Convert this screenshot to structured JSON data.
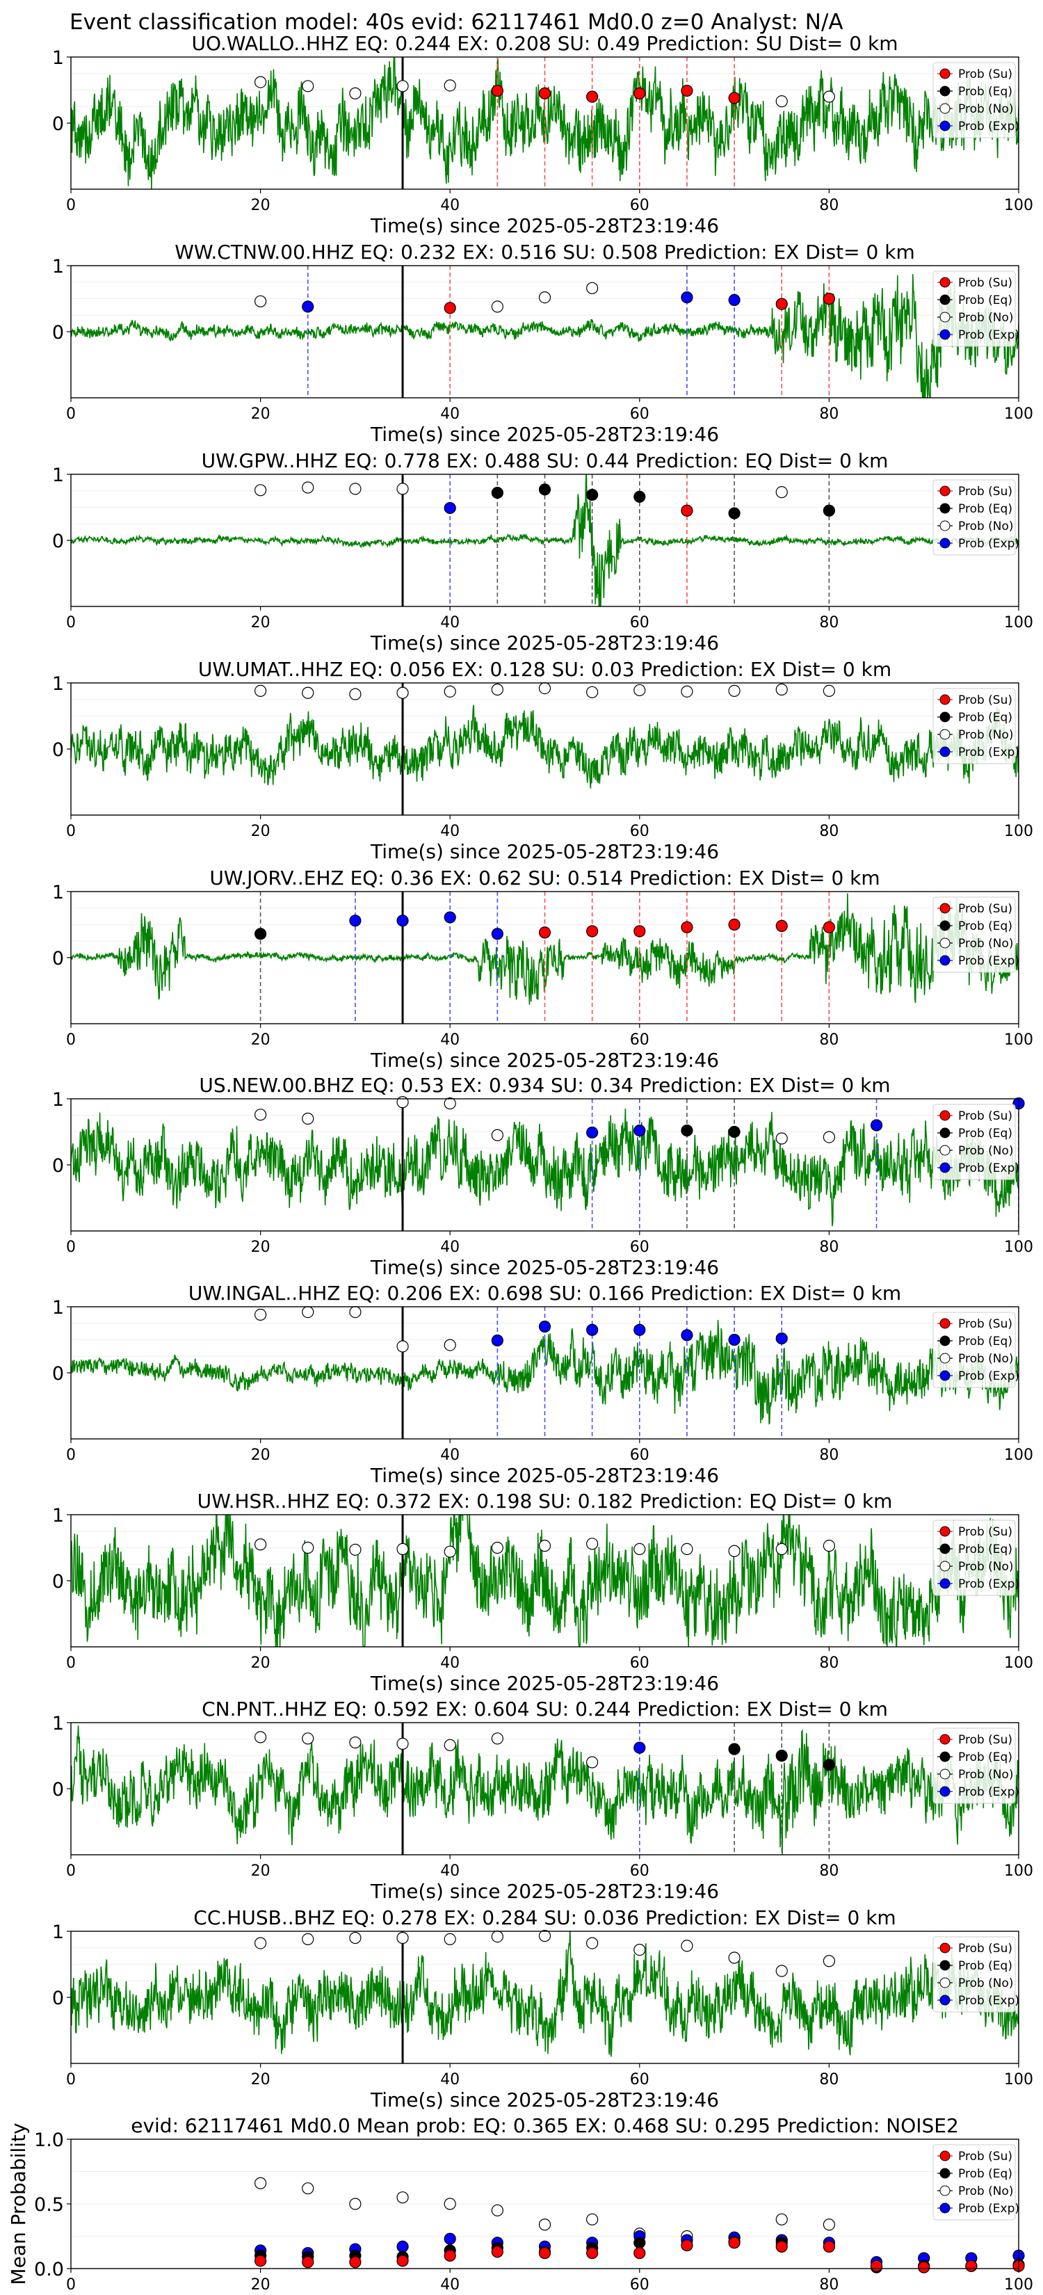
{
  "suptitle": "Event classification model: 40s evid: 62117461 Md0.0 z=0 Analyst: N/A",
  "xlabel": "Time(s) since 2025-05-28T23:19:46",
  "legend": [
    "Prob (Su)",
    "Prob (Eq)",
    "Prob (No)",
    "Prob (Exp)"
  ],
  "colors": {
    "su": "#ff0000",
    "eq": "#000000",
    "no": "#ffffff",
    "exp": "#0000ff",
    "trace": "#008000"
  },
  "chart_data": [
    {
      "type": "line",
      "station": "UO.WALLO..HHZ",
      "title": "UO.WALLO..HHZ   EQ: 0.244  EX: 0.208  SU: 0.49   Prediction: SU    Dist= 0 km",
      "xlim": [
        0,
        100
      ],
      "ylim": [
        -1,
        1
      ],
      "xticks": [
        0,
        20,
        40,
        60,
        80,
        100
      ],
      "yticks": [
        0,
        1
      ],
      "pick_time": 35,
      "trace": {
        "amp": 0.55,
        "bursts": []
      },
      "points": [
        {
          "t": 20,
          "p": 0.62,
          "c": "no"
        },
        {
          "t": 25,
          "p": 0.56,
          "c": "no"
        },
        {
          "t": 30,
          "p": 0.45,
          "c": "no"
        },
        {
          "t": 35,
          "p": 0.56,
          "c": "no"
        },
        {
          "t": 40,
          "p": 0.57,
          "c": "no"
        },
        {
          "t": 45,
          "p": 0.49,
          "c": "su"
        },
        {
          "t": 50,
          "p": 0.45,
          "c": "su"
        },
        {
          "t": 55,
          "p": 0.4,
          "c": "su"
        },
        {
          "t": 60,
          "p": 0.45,
          "c": "su"
        },
        {
          "t": 65,
          "p": 0.49,
          "c": "su"
        },
        {
          "t": 70,
          "p": 0.38,
          "c": "su"
        },
        {
          "t": 75,
          "p": 0.33,
          "c": "no"
        },
        {
          "t": 80,
          "p": 0.4,
          "c": "no"
        }
      ]
    },
    {
      "type": "line",
      "station": "WW.CTNW.00.HHZ",
      "title": "WW.CTNW.00.HHZ   EQ: 0.232  EX: 0.516  SU: 0.508   Prediction: EX    Dist= 0 km",
      "xlim": [
        0,
        100
      ],
      "ylim": [
        -1,
        1
      ],
      "xticks": [
        0,
        20,
        40,
        60,
        80,
        100
      ],
      "yticks": [
        0,
        1
      ],
      "pick_time": 35,
      "trace": {
        "amp": 0.1,
        "bursts": [
          [
            74,
            100,
            0.8
          ]
        ]
      },
      "points": [
        {
          "t": 20,
          "p": 0.46,
          "c": "no"
        },
        {
          "t": 25,
          "p": 0.38,
          "c": "exp"
        },
        {
          "t": 40,
          "p": 0.36,
          "c": "su"
        },
        {
          "t": 45,
          "p": 0.38,
          "c": "no"
        },
        {
          "t": 50,
          "p": 0.52,
          "c": "no"
        },
        {
          "t": 55,
          "p": 0.66,
          "c": "no"
        },
        {
          "t": 65,
          "p": 0.52,
          "c": "exp"
        },
        {
          "t": 70,
          "p": 0.48,
          "c": "exp"
        },
        {
          "t": 75,
          "p": 0.42,
          "c": "su"
        },
        {
          "t": 80,
          "p": 0.5,
          "c": "su"
        }
      ]
    },
    {
      "type": "line",
      "station": "UW.GPW..HHZ",
      "title": "UW.GPW..HHZ   EQ: 0.778  EX: 0.488  SU: 0.44   Prediction: EQ    Dist= 0 km",
      "xlim": [
        0,
        100
      ],
      "ylim": [
        -1,
        1
      ],
      "xticks": [
        0,
        20,
        40,
        60,
        80,
        100
      ],
      "yticks": [
        0,
        1
      ],
      "pick_time": 35,
      "trace": {
        "amp": 0.05,
        "bursts": [
          [
            53,
            58,
            0.9
          ]
        ]
      },
      "points": [
        {
          "t": 20,
          "p": 0.76,
          "c": "no"
        },
        {
          "t": 25,
          "p": 0.8,
          "c": "no"
        },
        {
          "t": 30,
          "p": 0.78,
          "c": "no"
        },
        {
          "t": 35,
          "p": 0.78,
          "c": "no"
        },
        {
          "t": 40,
          "p": 0.49,
          "c": "exp"
        },
        {
          "t": 45,
          "p": 0.72,
          "c": "eq"
        },
        {
          "t": 50,
          "p": 0.77,
          "c": "eq"
        },
        {
          "t": 55,
          "p": 0.69,
          "c": "eq"
        },
        {
          "t": 60,
          "p": 0.66,
          "c": "eq"
        },
        {
          "t": 65,
          "p": 0.45,
          "c": "su"
        },
        {
          "t": 70,
          "p": 0.41,
          "c": "eq"
        },
        {
          "t": 75,
          "p": 0.73,
          "c": "no"
        },
        {
          "t": 80,
          "p": 0.45,
          "c": "eq"
        }
      ]
    },
    {
      "type": "line",
      "station": "UW.UMAT..HHZ",
      "title": "UW.UMAT..HHZ   EQ: 0.056  EX: 0.128  SU: 0.03   Prediction: EX    Dist= 0 km",
      "xlim": [
        0,
        100
      ],
      "ylim": [
        -1,
        1
      ],
      "xticks": [
        0,
        20,
        40,
        60,
        80,
        100
      ],
      "yticks": [
        0,
        1
      ],
      "pick_time": 35,
      "trace": {
        "amp": 0.35,
        "bursts": []
      },
      "points": [
        {
          "t": 20,
          "p": 0.88,
          "c": "no"
        },
        {
          "t": 25,
          "p": 0.85,
          "c": "no"
        },
        {
          "t": 30,
          "p": 0.83,
          "c": "no"
        },
        {
          "t": 35,
          "p": 0.85,
          "c": "no"
        },
        {
          "t": 40,
          "p": 0.87,
          "c": "no"
        },
        {
          "t": 45,
          "p": 0.9,
          "c": "no"
        },
        {
          "t": 50,
          "p": 0.92,
          "c": "no"
        },
        {
          "t": 55,
          "p": 0.86,
          "c": "no"
        },
        {
          "t": 60,
          "p": 0.89,
          "c": "no"
        },
        {
          "t": 65,
          "p": 0.87,
          "c": "no"
        },
        {
          "t": 70,
          "p": 0.88,
          "c": "no"
        },
        {
          "t": 75,
          "p": 0.9,
          "c": "no"
        },
        {
          "t": 80,
          "p": 0.88,
          "c": "no"
        }
      ]
    },
    {
      "type": "line",
      "station": "UW.JORV..EHZ",
      "title": "UW.JORV..EHZ   EQ: 0.36  EX: 0.62  SU: 0.514   Prediction: EX    Dist= 0 km",
      "xlim": [
        0,
        100
      ],
      "ylim": [
        -1,
        1
      ],
      "xticks": [
        0,
        20,
        40,
        60,
        80,
        100
      ],
      "yticks": [
        0,
        1
      ],
      "pick_time": 35,
      "trace": {
        "amp": 0.05,
        "bursts": [
          [
            5,
            12,
            0.6
          ],
          [
            43,
            52,
            0.6
          ],
          [
            56,
            70,
            0.4
          ],
          [
            78,
            100,
            0.7
          ]
        ]
      },
      "points": [
        {
          "t": 20,
          "p": 0.36,
          "c": "eq"
        },
        {
          "t": 30,
          "p": 0.56,
          "c": "exp"
        },
        {
          "t": 35,
          "p": 0.56,
          "c": "exp"
        },
        {
          "t": 40,
          "p": 0.61,
          "c": "exp"
        },
        {
          "t": 45,
          "p": 0.36,
          "c": "exp"
        },
        {
          "t": 50,
          "p": 0.38,
          "c": "su"
        },
        {
          "t": 55,
          "p": 0.4,
          "c": "su"
        },
        {
          "t": 60,
          "p": 0.4,
          "c": "su"
        },
        {
          "t": 65,
          "p": 0.46,
          "c": "su"
        },
        {
          "t": 70,
          "p": 0.5,
          "c": "su"
        },
        {
          "t": 75,
          "p": 0.48,
          "c": "su"
        },
        {
          "t": 80,
          "p": 0.46,
          "c": "su"
        }
      ]
    },
    {
      "type": "line",
      "station": "US.NEW.00.BHZ",
      "title": "US.NEW.00.BHZ   EQ: 0.53  EX: 0.934  SU: 0.34   Prediction: EX    Dist= 0 km",
      "xlim": [
        0,
        100
      ],
      "ylim": [
        -1,
        1
      ],
      "xticks": [
        0,
        20,
        40,
        60,
        80,
        100
      ],
      "yticks": [
        0,
        1
      ],
      "pick_time": 35,
      "trace": {
        "amp": 0.5,
        "bursts": []
      },
      "points": [
        {
          "t": 20,
          "p": 0.76,
          "c": "no"
        },
        {
          "t": 25,
          "p": 0.7,
          "c": "no"
        },
        {
          "t": 35,
          "p": 0.95,
          "c": "no"
        },
        {
          "t": 40,
          "p": 0.93,
          "c": "no"
        },
        {
          "t": 45,
          "p": 0.45,
          "c": "no"
        },
        {
          "t": 55,
          "p": 0.49,
          "c": "exp"
        },
        {
          "t": 60,
          "p": 0.52,
          "c": "exp"
        },
        {
          "t": 65,
          "p": 0.52,
          "c": "eq"
        },
        {
          "t": 70,
          "p": 0.5,
          "c": "eq"
        },
        {
          "t": 75,
          "p": 0.4,
          "c": "no"
        },
        {
          "t": 80,
          "p": 0.42,
          "c": "no"
        },
        {
          "t": 85,
          "p": 0.6,
          "c": "exp"
        },
        {
          "t": 100,
          "p": 0.93,
          "c": "exp"
        }
      ]
    },
    {
      "type": "line",
      "station": "UW.INGAL..HHZ",
      "title": "UW.INGAL..HHZ   EQ: 0.206  EX: 0.698  SU: 0.166   Prediction: EX    Dist= 0 km",
      "xlim": [
        0,
        100
      ],
      "ylim": [
        -1,
        1
      ],
      "xticks": [
        0,
        20,
        40,
        60,
        80,
        100
      ],
      "yticks": [
        0,
        1
      ],
      "pick_time": 35,
      "trace": {
        "amp": 0.15,
        "bursts": [
          [
            45,
            100,
            0.55
          ]
        ]
      },
      "points": [
        {
          "t": 20,
          "p": 0.88,
          "c": "no"
        },
        {
          "t": 25,
          "p": 0.92,
          "c": "no"
        },
        {
          "t": 30,
          "p": 0.92,
          "c": "no"
        },
        {
          "t": 35,
          "p": 0.4,
          "c": "no"
        },
        {
          "t": 40,
          "p": 0.42,
          "c": "no"
        },
        {
          "t": 45,
          "p": 0.49,
          "c": "exp"
        },
        {
          "t": 50,
          "p": 0.7,
          "c": "exp"
        },
        {
          "t": 55,
          "p": 0.65,
          "c": "exp"
        },
        {
          "t": 60,
          "p": 0.65,
          "c": "exp"
        },
        {
          "t": 65,
          "p": 0.57,
          "c": "exp"
        },
        {
          "t": 70,
          "p": 0.5,
          "c": "exp"
        },
        {
          "t": 75,
          "p": 0.52,
          "c": "exp"
        }
      ]
    },
    {
      "type": "line",
      "station": "UW.HSR..HHZ",
      "title": "UW.HSR..HHZ   EQ: 0.372  EX: 0.198  SU: 0.182   Prediction: EQ    Dist= 0 km",
      "xlim": [
        0,
        100
      ],
      "ylim": [
        -1,
        1
      ],
      "xticks": [
        0,
        20,
        40,
        60,
        80,
        100
      ],
      "yticks": [
        0,
        1
      ],
      "pick_time": 35,
      "trace": {
        "amp": 0.7,
        "bursts": []
      },
      "points": [
        {
          "t": 20,
          "p": 0.55,
          "c": "no"
        },
        {
          "t": 25,
          "p": 0.5,
          "c": "no"
        },
        {
          "t": 30,
          "p": 0.47,
          "c": "no"
        },
        {
          "t": 35,
          "p": 0.48,
          "c": "no"
        },
        {
          "t": 40,
          "p": 0.44,
          "c": "no"
        },
        {
          "t": 45,
          "p": 0.5,
          "c": "no"
        },
        {
          "t": 50,
          "p": 0.53,
          "c": "no"
        },
        {
          "t": 55,
          "p": 0.56,
          "c": "no"
        },
        {
          "t": 60,
          "p": 0.48,
          "c": "no"
        },
        {
          "t": 65,
          "p": 0.48,
          "c": "no"
        },
        {
          "t": 70,
          "p": 0.45,
          "c": "no"
        },
        {
          "t": 75,
          "p": 0.48,
          "c": "no"
        },
        {
          "t": 80,
          "p": 0.53,
          "c": "no"
        }
      ]
    },
    {
      "type": "line",
      "station": "CN.PNT..HHZ",
      "title": "CN.PNT..HHZ   EQ: 0.592  EX: 0.604  SU: 0.244   Prediction: EX    Dist= 0 km",
      "xlim": [
        0,
        100
      ],
      "ylim": [
        -1,
        1
      ],
      "xticks": [
        0,
        20,
        40,
        60,
        80,
        100
      ],
      "yticks": [
        0,
        1
      ],
      "pick_time": 35,
      "trace": {
        "amp": 0.5,
        "bursts": [
          [
            70,
            82,
            0.8
          ]
        ]
      },
      "points": [
        {
          "t": 20,
          "p": 0.78,
          "c": "no"
        },
        {
          "t": 25,
          "p": 0.76,
          "c": "no"
        },
        {
          "t": 30,
          "p": 0.7,
          "c": "no"
        },
        {
          "t": 35,
          "p": 0.68,
          "c": "no"
        },
        {
          "t": 40,
          "p": 0.66,
          "c": "no"
        },
        {
          "t": 45,
          "p": 0.76,
          "c": "no"
        },
        {
          "t": 55,
          "p": 0.4,
          "c": "no"
        },
        {
          "t": 60,
          "p": 0.62,
          "c": "exp"
        },
        {
          "t": 70,
          "p": 0.6,
          "c": "eq"
        },
        {
          "t": 75,
          "p": 0.5,
          "c": "eq"
        },
        {
          "t": 80,
          "p": 0.36,
          "c": "eq"
        }
      ]
    },
    {
      "type": "line",
      "station": "CC.HUSB..BHZ",
      "title": "CC.HUSB..BHZ   EQ: 0.278  EX: 0.284  SU: 0.036   Prediction: EX    Dist= 0 km",
      "xlim": [
        0,
        100
      ],
      "ylim": [
        -1,
        1
      ],
      "xticks": [
        0,
        20,
        40,
        60,
        80,
        100
      ],
      "yticks": [
        0,
        1
      ],
      "pick_time": 35,
      "trace": {
        "amp": 0.5,
        "bursts": []
      },
      "points": [
        {
          "t": 20,
          "p": 0.82,
          "c": "no"
        },
        {
          "t": 25,
          "p": 0.88,
          "c": "no"
        },
        {
          "t": 30,
          "p": 0.9,
          "c": "no"
        },
        {
          "t": 35,
          "p": 0.9,
          "c": "no"
        },
        {
          "t": 40,
          "p": 0.88,
          "c": "no"
        },
        {
          "t": 45,
          "p": 0.92,
          "c": "no"
        },
        {
          "t": 50,
          "p": 0.93,
          "c": "no"
        },
        {
          "t": 55,
          "p": 0.82,
          "c": "no"
        },
        {
          "t": 60,
          "p": 0.72,
          "c": "no"
        },
        {
          "t": 65,
          "p": 0.78,
          "c": "no"
        },
        {
          "t": 70,
          "p": 0.6,
          "c": "no"
        },
        {
          "t": 75,
          "p": 0.4,
          "c": "no"
        },
        {
          "t": 80,
          "p": 0.55,
          "c": "no"
        }
      ]
    },
    {
      "type": "scatter",
      "summary": true,
      "title": "evid: 62117461  Md0.0   Mean prob:   EQ: 0.365  EX: 0.468  SU: 0.295   Prediction: NOISE2",
      "ylabel": "Mean Probability",
      "xlim": [
        0,
        100
      ],
      "ylim": [
        0,
        1
      ],
      "xticks": [
        0,
        20,
        40,
        60,
        80,
        100
      ],
      "yticks": [
        0.0,
        0.5,
        1.0
      ],
      "x": [
        20,
        25,
        30,
        35,
        40,
        45,
        50,
        55,
        60,
        65,
        70,
        75,
        80,
        85,
        90,
        95,
        100
      ],
      "series": [
        {
          "name": "Prob (No)",
          "c": "no",
          "values": [
            0.66,
            0.62,
            0.5,
            0.55,
            0.5,
            0.45,
            0.34,
            0.38,
            0.27,
            0.25,
            0.24,
            0.38,
            0.34,
            null,
            null,
            null,
            null
          ]
        },
        {
          "name": "Prob (Exp)",
          "c": "exp",
          "values": [
            0.14,
            0.12,
            0.15,
            0.17,
            0.23,
            0.2,
            0.17,
            0.2,
            0.25,
            0.22,
            0.24,
            0.22,
            0.2,
            0.05,
            0.08,
            0.08,
            0.1
          ]
        },
        {
          "name": "Prob (Eq)",
          "c": "eq",
          "values": [
            0.1,
            0.09,
            0.1,
            0.09,
            0.14,
            0.16,
            0.13,
            0.16,
            0.2,
            0.18,
            0.21,
            0.2,
            0.17,
            0.01,
            0.02,
            0.02,
            0.03
          ]
        },
        {
          "name": "Prob (Su)",
          "c": "su",
          "values": [
            0.06,
            0.05,
            0.05,
            0.06,
            0.1,
            0.13,
            0.12,
            0.12,
            0.12,
            0.18,
            0.2,
            0.17,
            0.17,
            0.02,
            0.01,
            0.02,
            0.02
          ]
        }
      ]
    }
  ]
}
